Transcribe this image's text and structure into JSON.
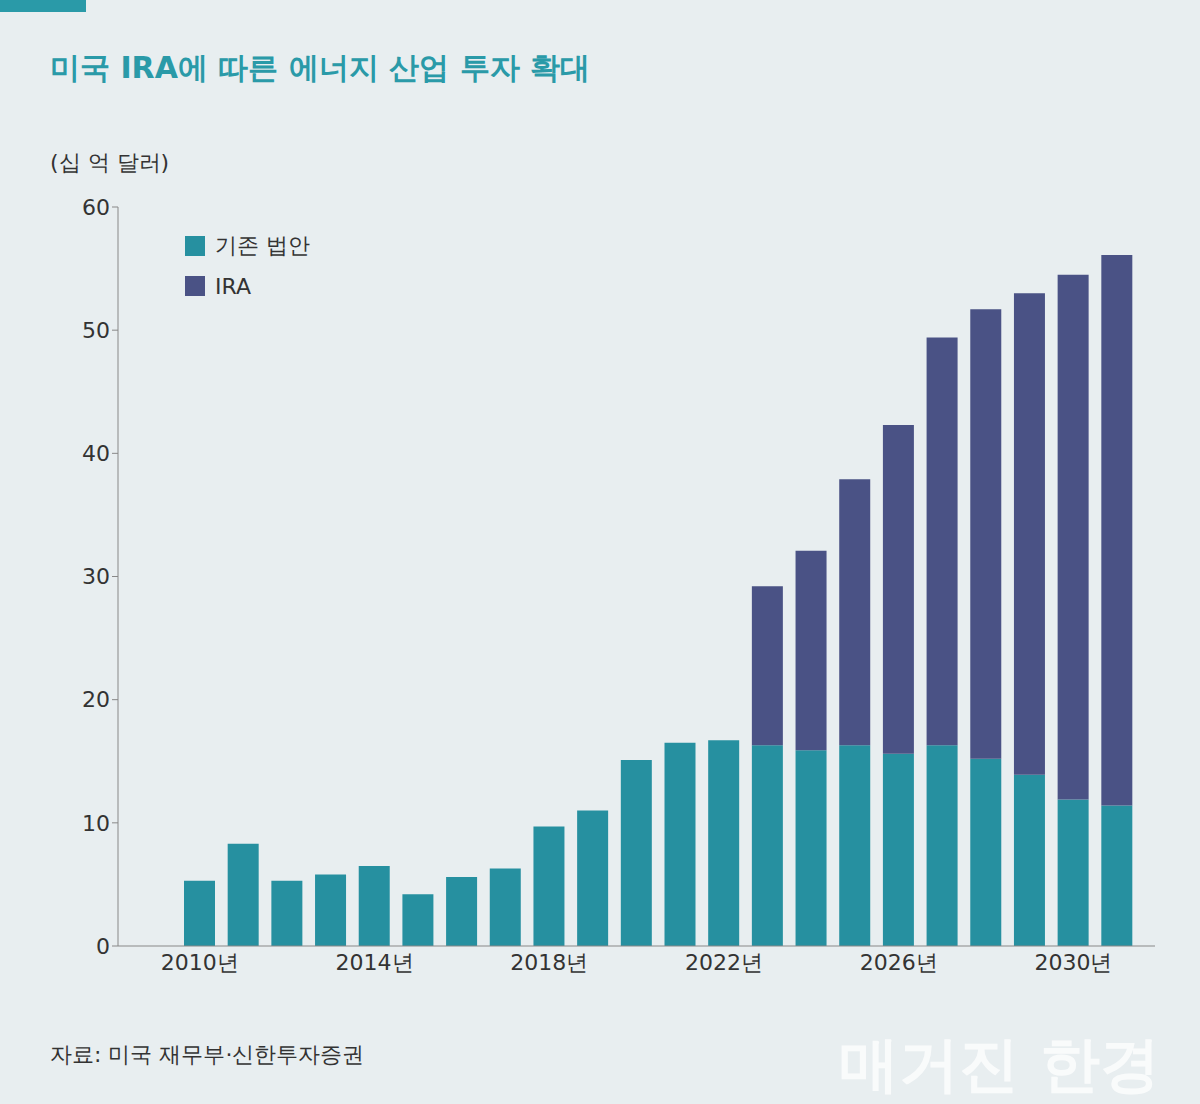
{
  "chart_data": {
    "type": "bar",
    "title": "미국 IRA에 따른 에너지 산업 투자 확대",
    "y_label": "(십 억 달러)",
    "categories": [
      "2010년",
      null,
      null,
      null,
      "2014년",
      null,
      null,
      null,
      "2018년",
      null,
      null,
      null,
      "2022년",
      null,
      null,
      null,
      "2026년",
      null,
      null,
      null,
      "2030년",
      null
    ],
    "series": [
      {
        "name": "기존 법안",
        "color": "#2690a0",
        "values": [
          5.3,
          8.3,
          5.3,
          5.8,
          6.5,
          4.2,
          5.6,
          6.3,
          9.7,
          11.0,
          15.1,
          16.5,
          16.7,
          16.3,
          15.9,
          16.3,
          15.6,
          16.3,
          15.2,
          13.9,
          11.9,
          11.4
        ]
      },
      {
        "name": "IRA",
        "color": "#4a5285",
        "values": [
          null,
          null,
          null,
          null,
          null,
          null,
          null,
          null,
          null,
          null,
          null,
          null,
          null,
          12.9,
          16.2,
          21.6,
          26.7,
          33.1,
          36.5,
          39.1,
          42.6,
          44.7
        ]
      }
    ],
    "ylim": [
      0,
      60
    ],
    "yticks": [
      0,
      10,
      20,
      30,
      40,
      50,
      60
    ],
    "stacked": true,
    "grid": false,
    "legend": "top-left",
    "annotations": [
      "자료: 미국 재무부·신한투자증권",
      "매거진 한경"
    ]
  }
}
